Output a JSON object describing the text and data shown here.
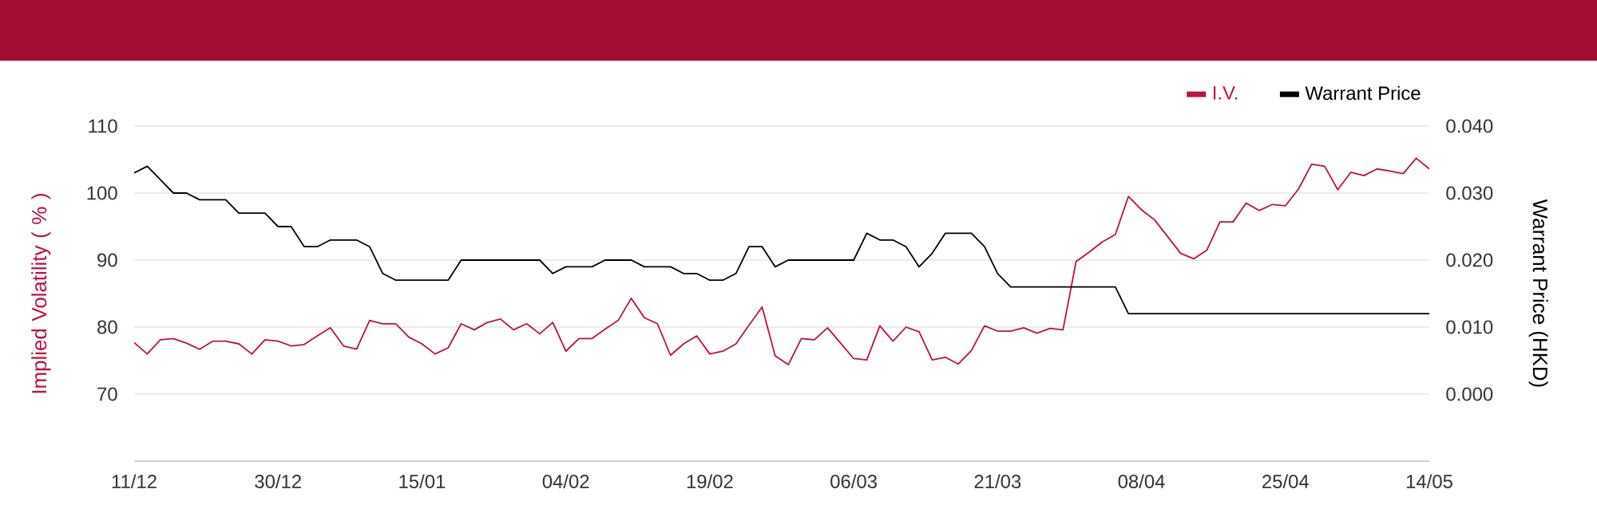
{
  "chart_data": {
    "type": "line",
    "ylabel": "Implied Volatility ( % )",
    "y2label": "Warrant Price (HKD)",
    "categories": [
      "11/12",
      null,
      null,
      null,
      null,
      null,
      null,
      null,
      null,
      null,
      null,
      "30/12",
      null,
      null,
      null,
      null,
      null,
      null,
      null,
      null,
      null,
      null,
      "15/01",
      null,
      null,
      null,
      null,
      null,
      null,
      null,
      null,
      null,
      null,
      "04/02",
      null,
      null,
      null,
      null,
      null,
      null,
      null,
      null,
      null,
      null,
      "19/02",
      null,
      null,
      null,
      null,
      null,
      null,
      null,
      null,
      null,
      null,
      "06/03",
      null,
      null,
      null,
      null,
      null,
      null,
      null,
      null,
      null,
      null,
      "21/03",
      null,
      null,
      null,
      null,
      null,
      null,
      null,
      null,
      null,
      null,
      "08/04",
      null,
      null,
      null,
      null,
      null,
      null,
      null,
      null,
      null,
      null,
      "25/04",
      null,
      null,
      null,
      null,
      null,
      null,
      null,
      null,
      null,
      null,
      "14/05"
    ],
    "series": [
      {
        "name": "I.V.",
        "color": "#c0103f",
        "values": [
          77.7,
          76.0,
          78.1,
          78.3,
          77.6,
          76.7,
          77.9,
          77.9,
          77.5,
          76.0,
          78.1,
          77.9,
          77.2,
          77.4,
          78.7,
          79.9,
          77.2,
          76.7,
          81.0,
          80.5,
          80.5,
          78.5,
          77.5,
          76.0,
          76.9,
          80.5,
          79.6,
          80.7,
          81.2,
          79.6,
          80.5,
          79.0,
          80.7,
          76.4,
          78.3,
          78.3,
          79.7,
          81.0,
          84.3,
          81.4,
          80.5,
          75.8,
          77.5,
          78.7,
          76.0,
          76.4,
          77.5,
          80.3,
          83.0,
          75.7,
          74.4,
          78.3,
          78.1,
          79.9,
          77.6,
          75.3,
          75.1,
          80.2,
          77.9,
          80.0,
          79.3,
          75.1,
          75.5,
          74.5,
          76.5,
          80.2,
          79.4,
          79.4,
          79.9,
          79.1,
          79.8,
          79.6,
          89.8,
          91.2,
          92.7,
          93.8,
          99.5,
          97.5,
          96.0,
          93.5,
          91.0,
          90.2,
          91.5,
          95.7,
          95.7,
          98.5,
          97.4,
          98.3,
          98.1,
          100.6,
          104.3,
          104.0,
          100.5,
          103.1,
          102.6,
          103.6,
          103.3,
          102.9,
          105.2,
          103.6
        ]
      },
      {
        "name": "Warrant Price",
        "color": "#000000",
        "axis": "y2",
        "values": [
          0.033,
          0.034,
          0.032,
          0.03,
          0.03,
          0.029,
          0.029,
          0.029,
          0.027,
          0.027,
          0.027,
          0.025,
          0.025,
          0.022,
          0.022,
          0.023,
          0.023,
          0.023,
          0.022,
          0.018,
          0.017,
          0.017,
          0.017,
          0.017,
          0.017,
          0.02,
          0.02,
          0.02,
          0.02,
          0.02,
          0.02,
          0.02,
          0.018,
          0.019,
          0.019,
          0.019,
          0.02,
          0.02,
          0.02,
          0.019,
          0.019,
          0.019,
          0.018,
          0.018,
          0.017,
          0.017,
          0.018,
          0.022,
          0.022,
          0.019,
          0.02,
          0.02,
          0.02,
          0.02,
          0.02,
          0.02,
          0.024,
          0.023,
          0.023,
          0.022,
          0.019,
          0.021,
          0.024,
          0.024,
          0.024,
          0.022,
          0.018,
          0.016,
          0.016,
          0.016,
          0.016,
          0.016,
          0.016,
          0.016,
          0.016,
          0.016,
          0.012,
          0.012,
          0.012,
          0.012,
          0.012,
          0.012,
          0.012,
          0.012,
          0.012,
          0.012,
          0.012,
          0.012,
          0.012,
          0.012,
          0.012,
          0.012,
          0.012,
          0.012,
          0.012,
          0.012,
          0.012,
          0.012,
          0.012,
          0.012
        ]
      }
    ],
    "ylim": [
      60,
      110
    ],
    "yticks": [
      70,
      80,
      90,
      100,
      110
    ],
    "y2lim": [
      -0.01,
      0.04
    ],
    "y2ticks": [
      {
        "value": 0,
        "label": "0.000"
      },
      {
        "value": 0.01,
        "label": "0.010"
      },
      {
        "value": 0.02,
        "label": "0.020"
      },
      {
        "value": 0.03,
        "label": "0.030"
      },
      {
        "value": 0.04,
        "label": "0.040"
      }
    ],
    "grid": "y",
    "legend": "top right",
    "marker": "none",
    "line_style": "solid"
  }
}
